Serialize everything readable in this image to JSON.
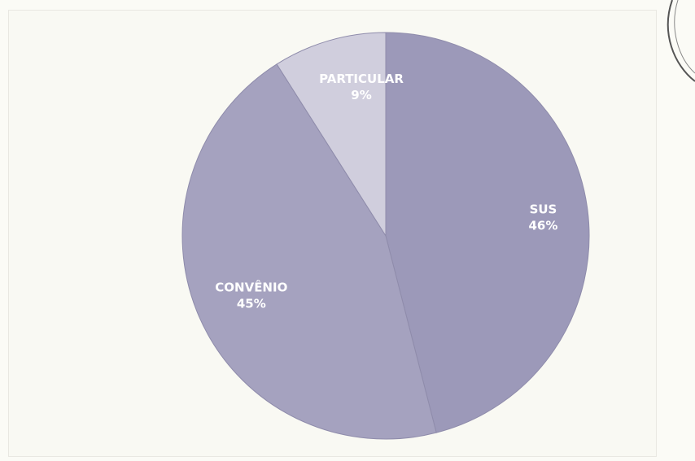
{
  "chart_data": {
    "type": "pie",
    "categories": [
      "SUS",
      "CONVÊNIO",
      "PARTICULAR"
    ],
    "values": [
      46,
      45,
      9
    ],
    "labels": [
      "46%",
      "45%",
      "9%"
    ],
    "colors": [
      "#9c99b9",
      "#a5a2bf",
      "#d0cedd"
    ],
    "start": "12 o'clock",
    "direction": "clockwise"
  }
}
